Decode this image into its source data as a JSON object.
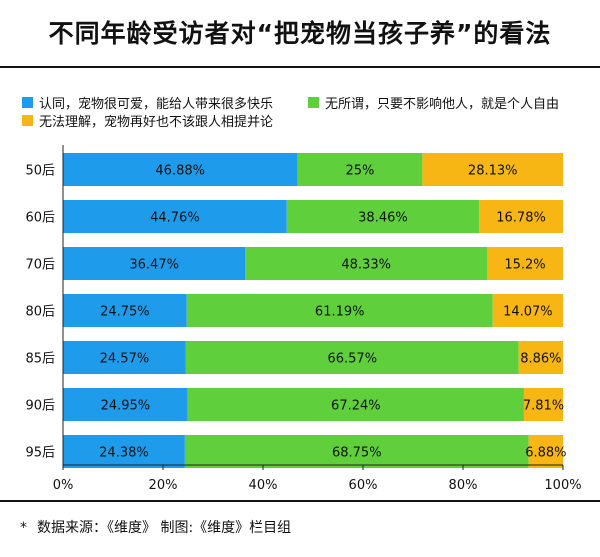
{
  "title": "不同年龄受访者对“把宠物当孩子养”的看法",
  "footnote": {
    "star": "*",
    "text": "数据来源：《维度》  制图:《维度》栏目组"
  },
  "colors": {
    "series_0": "#1e9bea",
    "series_1": "#5fcf3c",
    "series_2": "#f7b614"
  },
  "chart_data": {
    "type": "bar",
    "orientation": "horizontal",
    "stacked": "percent",
    "categories": [
      "50后",
      "60后",
      "70后",
      "80后",
      "85后",
      "90后",
      "95后"
    ],
    "series": [
      {
        "name": "认同，宠物很可爱，能给人带来很多快乐",
        "values": [
          46.88,
          44.76,
          36.47,
          24.75,
          24.57,
          24.95,
          24.38
        ],
        "labels": [
          "46.88%",
          "44.76%",
          "36.47%",
          "24.75%",
          "24.57%",
          "24.95%",
          "24.38%"
        ]
      },
      {
        "name": "无所谓，只要不影响他人，就是个人自由",
        "values": [
          25,
          38.46,
          48.33,
          61.19,
          66.57,
          67.24,
          68.75
        ],
        "labels": [
          "25%",
          "38.46%",
          "48.33%",
          "61.19%",
          "66.57%",
          "67.24%",
          "68.75%"
        ]
      },
      {
        "name": "无法理解，宠物再好也不该跟人相提并论",
        "values": [
          28.13,
          16.78,
          15.2,
          14.07,
          8.86,
          7.81,
          6.88
        ],
        "labels": [
          "28.13%",
          "16.78%",
          "15.2%",
          "14.07%",
          "8.86%",
          "7.81%",
          "6.88%"
        ]
      }
    ],
    "xlim": [
      0,
      100
    ],
    "xticks": [
      "0%",
      "20%",
      "40%",
      "60%",
      "80%",
      "100%"
    ],
    "legend_position": "top",
    "grid": false
  }
}
